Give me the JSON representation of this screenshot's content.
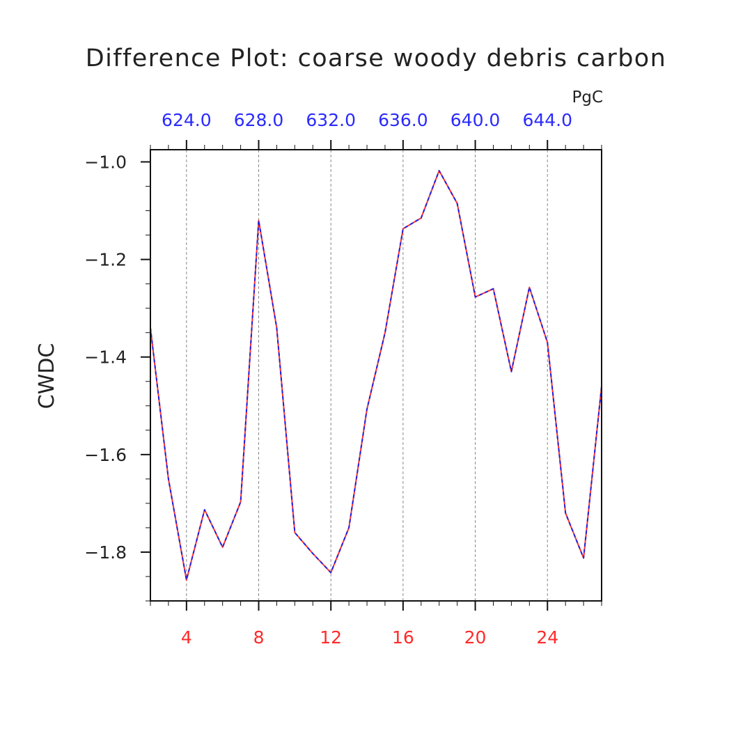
{
  "chart_data": {
    "type": "line",
    "title": "Difference Plot: coarse woody debris carbon",
    "ylabel": "CWDC",
    "top_axis_units": "PgC",
    "xlim": [
      2,
      27
    ],
    "ylim": [
      -1.9,
      -0.975
    ],
    "bottom_ticks": [
      {
        "value": 4,
        "label": "4"
      },
      {
        "value": 8,
        "label": "8"
      },
      {
        "value": 12,
        "label": "12"
      },
      {
        "value": 16,
        "label": "16"
      },
      {
        "value": 20,
        "label": "20"
      },
      {
        "value": 24,
        "label": "24"
      }
    ],
    "top_ticks": [
      {
        "value": 4,
        "label": "624.0"
      },
      {
        "value": 8,
        "label": "628.0"
      },
      {
        "value": 12,
        "label": "632.0"
      },
      {
        "value": 16,
        "label": "636.0"
      },
      {
        "value": 20,
        "label": "640.0"
      },
      {
        "value": 24,
        "label": "644.0"
      }
    ],
    "y_ticks": [
      {
        "value": -1.0,
        "label": "−1.0"
      },
      {
        "value": -1.2,
        "label": "−1.2"
      },
      {
        "value": -1.4,
        "label": "−1.4"
      },
      {
        "value": -1.6,
        "label": "−1.6"
      },
      {
        "value": -1.8,
        "label": "−1.8"
      }
    ],
    "grid": "vertical dashed at major bottom ticks",
    "x": [
      2,
      3,
      4,
      5,
      6,
      7,
      8,
      9,
      10,
      11,
      12,
      13,
      14,
      15,
      16,
      17,
      18,
      19,
      20,
      21,
      22,
      23,
      24,
      25,
      26,
      27
    ],
    "series": [
      {
        "values": [
          -1.34,
          -1.65,
          -1.857,
          -1.713,
          -1.79,
          -1.697,
          -1.12,
          -1.34,
          -1.76,
          -1.803,
          -1.842,
          -1.75,
          -1.507,
          -1.35,
          -1.137,
          -1.115,
          -1.018,
          -1.085,
          -1.277,
          -1.26,
          -1.43,
          -1.257,
          -1.37,
          -1.72,
          -1.812,
          -1.46
        ],
        "color": "#ff3333",
        "style": "solid"
      },
      {
        "values": [
          -1.34,
          -1.65,
          -1.857,
          -1.713,
          -1.79,
          -1.697,
          -1.12,
          -1.34,
          -1.76,
          -1.803,
          -1.842,
          -1.75,
          -1.507,
          -1.35,
          -1.137,
          -1.115,
          -1.018,
          -1.085,
          -1.277,
          -1.26,
          -1.43,
          -1.257,
          -1.37,
          -1.72,
          -1.812,
          -1.46
        ],
        "color": "#2222dd",
        "style": "dashed"
      }
    ]
  }
}
